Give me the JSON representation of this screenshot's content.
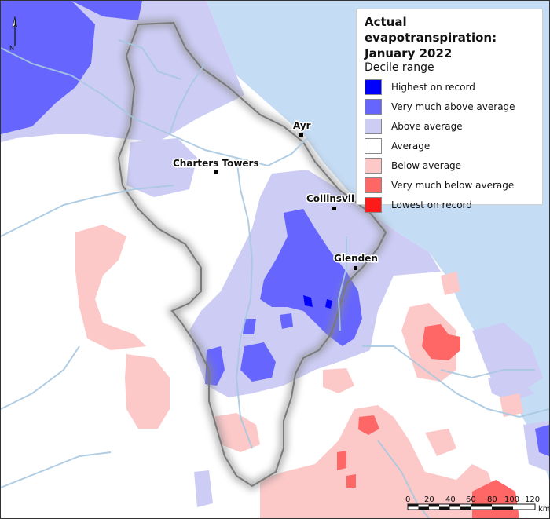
{
  "legend": {
    "title_line1": "Actual evapotranspiration:",
    "title_line2": "January 2022",
    "subtitle": "Decile range",
    "items": [
      {
        "label": "Highest on record",
        "color": "#0000ff"
      },
      {
        "label": "Very much above average",
        "color": "#6666ff"
      },
      {
        "label": "Above average",
        "color": "#ccccf5"
      },
      {
        "label": "Average",
        "color": "#ffffff"
      },
      {
        "label": "Below average",
        "color": "#fcc8c8"
      },
      {
        "label": "Very much below average",
        "color": "#ff6666"
      },
      {
        "label": "Lowest on record",
        "color": "#ff1a1a"
      }
    ]
  },
  "towns": [
    {
      "name": "Ayr"
    },
    {
      "name": "Charters Towers"
    },
    {
      "name": "Collinsvil"
    },
    {
      "name": "Glenden"
    }
  ],
  "north_arrow": {
    "label": "N",
    "icon": "north-arrow-icon"
  },
  "scale_bar": {
    "ticks": [
      "0",
      "20",
      "40",
      "60",
      "80",
      "100",
      "120"
    ],
    "unit": "km"
  },
  "colors": {
    "sea": "#c4dcf4",
    "rivers": "#a9c8e0",
    "region_shadow": "#8a8a8a"
  }
}
